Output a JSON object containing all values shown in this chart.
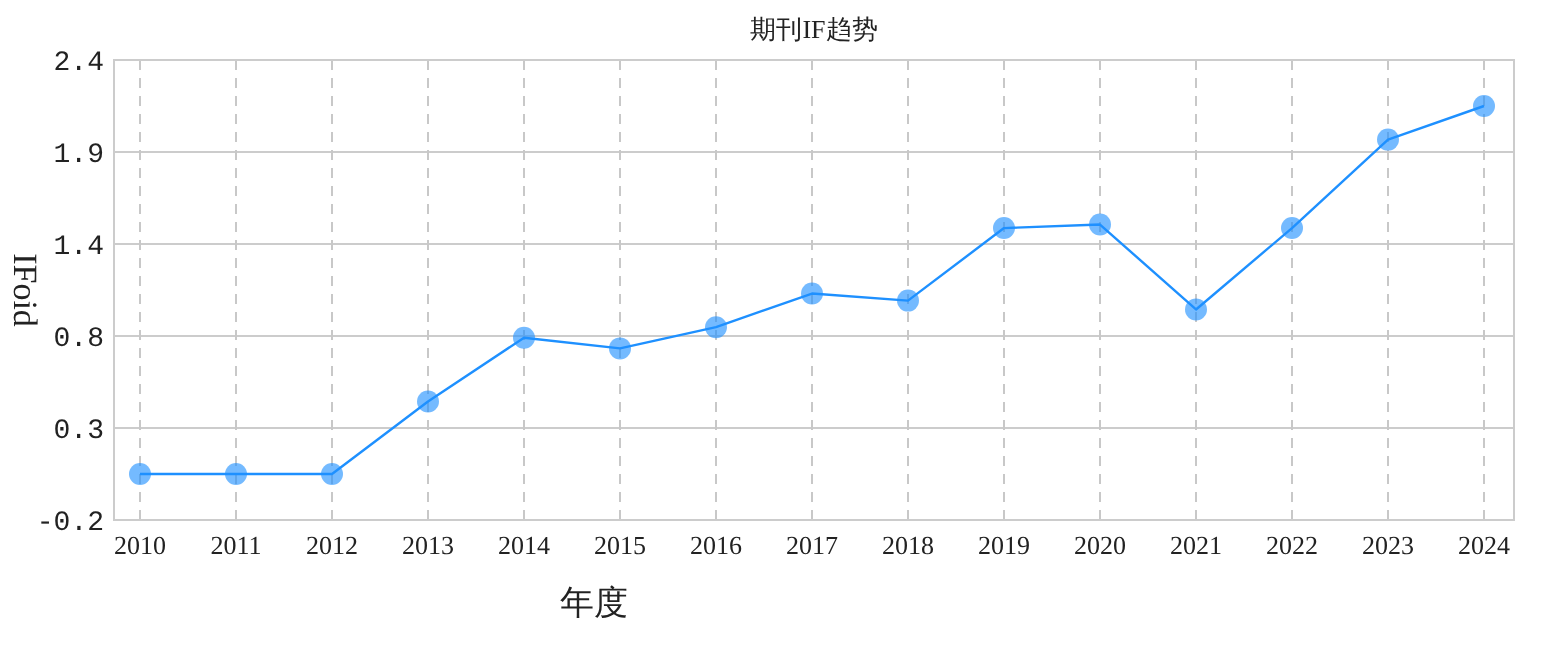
{
  "chart_data": {
    "type": "line",
    "title": "期刊IF趋势",
    "xlabel": "年度",
    "ylabel": "IFoid",
    "categories": [
      "2010",
      "2011",
      "2012",
      "2013",
      "2014",
      "2015",
      "2016",
      "2017",
      "2018",
      "2019",
      "2020",
      "2021",
      "2022",
      "2023",
      "2024"
    ],
    "series": [
      {
        "color": "#1e90ff",
        "values": [
          0.06,
          0.06,
          0.06,
          0.47,
          0.83,
          0.77,
          0.89,
          1.08,
          1.04,
          1.45,
          1.47,
          0.99,
          1.45,
          1.95,
          2.14
        ]
      }
    ],
    "ylim": [
      -0.2,
      2.4
    ],
    "yticks": [
      -0.2,
      {
        "value": 0.32,
        "label": "0.3"
      },
      {
        "value": 0.84,
        "label": "0.8"
      },
      {
        "value": 1.36,
        "label": "1.4"
      },
      {
        "value": 1.88,
        "label": "1.9"
      },
      2.4
    ],
    "grid": true,
    "marker": "circle",
    "line_style": "solid"
  }
}
